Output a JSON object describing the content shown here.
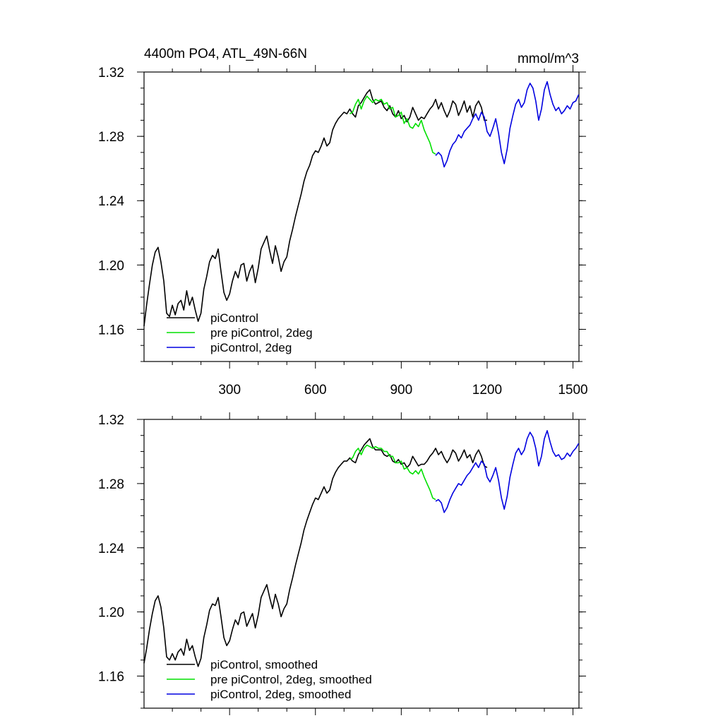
{
  "chart_data": [
    {
      "type": "line",
      "title": "4400m PO4, ATL_49N-66N",
      "units_label": "mmol/m^3",
      "x_tick_labels": [
        "300",
        "600",
        "900",
        "1200",
        "1500"
      ],
      "y_tick_labels": [
        "1.32",
        "1.28",
        "1.24",
        "1.20",
        "1.16"
      ],
      "xlim": [
        1,
        1521
      ],
      "ylim": [
        1.14,
        1.32
      ],
      "series": [
        {
          "name": "piControl",
          "color": "#000000",
          "x": [
            1,
            10,
            20,
            30,
            40,
            50,
            60,
            70,
            80,
            90,
            100,
            110,
            120,
            130,
            140,
            150,
            160,
            170,
            180,
            190,
            200,
            210,
            220,
            230,
            240,
            250,
            260,
            270,
            280,
            290,
            300,
            310,
            320,
            330,
            340,
            350,
            360,
            370,
            380,
            390,
            400,
            410,
            420,
            430,
            440,
            450,
            460,
            470,
            480,
            490,
            500,
            510,
            520,
            530,
            540,
            550,
            560,
            570,
            580,
            590,
            600,
            610,
            620,
            630,
            640,
            650,
            660,
            670,
            680,
            690,
            700,
            710,
            720,
            730,
            740,
            750,
            760,
            770,
            780,
            790,
            800,
            810,
            820,
            830,
            840,
            850,
            860,
            870,
            880,
            890,
            900,
            910,
            920,
            930,
            940,
            950,
            960,
            970,
            980,
            990,
            1000,
            1010,
            1020,
            1030,
            1040,
            1050,
            1060,
            1070,
            1080,
            1090,
            1100,
            1110,
            1120,
            1130,
            1140,
            1150,
            1160,
            1170,
            1180,
            1190,
            1200
          ],
          "y": [
            1.162,
            1.175,
            1.188,
            1.2,
            1.208,
            1.211,
            1.202,
            1.19,
            1.17,
            1.168,
            1.175,
            1.169,
            1.176,
            1.178,
            1.172,
            1.184,
            1.175,
            1.18,
            1.172,
            1.165,
            1.17,
            1.185,
            1.193,
            1.202,
            1.206,
            1.204,
            1.21,
            1.196,
            1.183,
            1.178,
            1.182,
            1.19,
            1.196,
            1.192,
            1.2,
            1.201,
            1.19,
            1.196,
            1.2,
            1.189,
            1.198,
            1.21,
            1.214,
            1.218,
            1.209,
            1.201,
            1.212,
            1.205,
            1.196,
            1.202,
            1.205,
            1.215,
            1.222,
            1.23,
            1.237,
            1.244,
            1.252,
            1.258,
            1.262,
            1.268,
            1.271,
            1.27,
            1.274,
            1.279,
            1.274,
            1.276,
            1.284,
            1.288,
            1.291,
            1.293,
            1.295,
            1.294,
            1.297,
            1.294,
            1.292,
            1.299,
            1.301,
            1.304,
            1.307,
            1.309,
            1.303,
            1.3,
            1.301,
            1.302,
            1.298,
            1.296,
            1.299,
            1.294,
            1.292,
            1.296,
            1.291,
            1.293,
            1.289,
            1.292,
            1.298,
            1.294,
            1.29,
            1.292,
            1.291,
            1.294,
            1.297,
            1.299,
            1.303,
            1.297,
            1.301,
            1.296,
            1.292,
            1.296,
            1.302,
            1.3,
            1.293,
            1.297,
            1.302,
            1.295,
            1.299,
            1.292,
            1.299,
            1.302,
            1.298,
            1.29,
            1.29
          ]
        },
        {
          "name": "pre piControl, 2deg",
          "color": "#00e000",
          "x": [
            720,
            730,
            740,
            750,
            760,
            770,
            780,
            790,
            800,
            810,
            820,
            830,
            840,
            850,
            860,
            870,
            880,
            890,
            900,
            910,
            920,
            930,
            940,
            950,
            960,
            970,
            980,
            990,
            1000,
            1010,
            1020
          ],
          "y": [
            1.294,
            1.295,
            1.3,
            1.303,
            1.297,
            1.302,
            1.305,
            1.303,
            1.301,
            1.303,
            1.302,
            1.303,
            1.3,
            1.301,
            1.297,
            1.298,
            1.292,
            1.293,
            1.295,
            1.288,
            1.291,
            1.286,
            1.285,
            1.288,
            1.286,
            1.29,
            1.284,
            1.28,
            1.276,
            1.27,
            1.269
          ]
        },
        {
          "name": "piControl, 2deg",
          "color": "#0000e0",
          "x": [
            1020,
            1030,
            1040,
            1050,
            1060,
            1070,
            1080,
            1090,
            1100,
            1110,
            1120,
            1130,
            1140,
            1150,
            1160,
            1170,
            1180,
            1190,
            1200,
            1210,
            1220,
            1230,
            1240,
            1250,
            1260,
            1270,
            1280,
            1290,
            1300,
            1310,
            1320,
            1330,
            1340,
            1350,
            1360,
            1370,
            1380,
            1390,
            1400,
            1410,
            1420,
            1430,
            1440,
            1450,
            1460,
            1470,
            1480,
            1490,
            1500,
            1510,
            1520
          ],
          "y": [
            1.268,
            1.27,
            1.268,
            1.261,
            1.265,
            1.271,
            1.275,
            1.277,
            1.281,
            1.279,
            1.283,
            1.285,
            1.287,
            1.291,
            1.294,
            1.29,
            1.295,
            1.292,
            1.283,
            1.28,
            1.285,
            1.291,
            1.282,
            1.27,
            1.263,
            1.272,
            1.285,
            1.293,
            1.3,
            1.303,
            1.298,
            1.301,
            1.309,
            1.313,
            1.31,
            1.302,
            1.29,
            1.297,
            1.309,
            1.314,
            1.306,
            1.3,
            1.296,
            1.298,
            1.294,
            1.296,
            1.299,
            1.297,
            1.301,
            1.302,
            1.306
          ]
        }
      ]
    },
    {
      "type": "line",
      "title": "",
      "x_tick_labels": [],
      "y_tick_labels": [
        "1.32",
        "1.28",
        "1.24",
        "1.20",
        "1.16"
      ],
      "xlim": [
        1,
        1521
      ],
      "ylim": [
        1.14,
        1.32
      ],
      "series": [
        {
          "name": "piControl, smoothed",
          "color": "#000000",
          "x": [
            1,
            10,
            20,
            30,
            40,
            50,
            60,
            70,
            80,
            90,
            100,
            110,
            120,
            130,
            140,
            150,
            160,
            170,
            180,
            190,
            200,
            210,
            220,
            230,
            240,
            250,
            260,
            270,
            280,
            290,
            300,
            310,
            320,
            330,
            340,
            350,
            360,
            370,
            380,
            390,
            400,
            410,
            420,
            430,
            440,
            450,
            460,
            470,
            480,
            490,
            500,
            510,
            520,
            530,
            540,
            550,
            560,
            570,
            580,
            590,
            600,
            610,
            620,
            630,
            640,
            650,
            660,
            670,
            680,
            690,
            700,
            710,
            720,
            730,
            740,
            750,
            760,
            770,
            780,
            790,
            800,
            810,
            820,
            830,
            840,
            850,
            860,
            870,
            880,
            890,
            900,
            910,
            920,
            930,
            940,
            950,
            960,
            970,
            980,
            990,
            1000,
            1010,
            1020,
            1030,
            1040,
            1050,
            1060,
            1070,
            1080,
            1090,
            1100,
            1110,
            1120,
            1130,
            1140,
            1150,
            1160,
            1170,
            1180,
            1190,
            1200
          ],
          "y": [
            1.168,
            1.177,
            1.189,
            1.199,
            1.207,
            1.21,
            1.203,
            1.19,
            1.172,
            1.17,
            1.174,
            1.17,
            1.175,
            1.177,
            1.173,
            1.183,
            1.176,
            1.179,
            1.172,
            1.166,
            1.171,
            1.184,
            1.192,
            1.201,
            1.205,
            1.204,
            1.209,
            1.197,
            1.184,
            1.179,
            1.182,
            1.189,
            1.195,
            1.192,
            1.199,
            1.2,
            1.191,
            1.195,
            1.199,
            1.19,
            1.198,
            1.209,
            1.213,
            1.217,
            1.209,
            1.202,
            1.211,
            1.205,
            1.197,
            1.202,
            1.205,
            1.214,
            1.221,
            1.229,
            1.236,
            1.243,
            1.251,
            1.257,
            1.262,
            1.267,
            1.271,
            1.27,
            1.274,
            1.278,
            1.274,
            1.276,
            1.283,
            1.287,
            1.29,
            1.292,
            1.294,
            1.294,
            1.296,
            1.294,
            1.293,
            1.298,
            1.301,
            1.304,
            1.306,
            1.308,
            1.303,
            1.301,
            1.301,
            1.301,
            1.298,
            1.297,
            1.298,
            1.294,
            1.293,
            1.295,
            1.292,
            1.293,
            1.29,
            1.292,
            1.297,
            1.294,
            1.291,
            1.292,
            1.292,
            1.294,
            1.297,
            1.299,
            1.302,
            1.298,
            1.3,
            1.296,
            1.293,
            1.296,
            1.301,
            1.299,
            1.294,
            1.297,
            1.301,
            1.296,
            1.298,
            1.293,
            1.298,
            1.301,
            1.297,
            1.291,
            1.29
          ]
        },
        {
          "name": "pre piControl, 2deg, smoothed",
          "color": "#00e000",
          "x": [
            720,
            730,
            740,
            750,
            760,
            770,
            780,
            790,
            800,
            810,
            820,
            830,
            840,
            850,
            860,
            870,
            880,
            890,
            900,
            910,
            920,
            930,
            940,
            950,
            960,
            970,
            980,
            990,
            1000,
            1010,
            1020
          ],
          "y": [
            1.295,
            1.296,
            1.3,
            1.302,
            1.298,
            1.302,
            1.304,
            1.303,
            1.302,
            1.303,
            1.302,
            1.302,
            1.3,
            1.3,
            1.297,
            1.297,
            1.293,
            1.293,
            1.294,
            1.289,
            1.29,
            1.287,
            1.286,
            1.288,
            1.286,
            1.289,
            1.284,
            1.28,
            1.276,
            1.271,
            1.27
          ]
        },
        {
          "name": "piControl, 2deg, smoothed",
          "color": "#0000e0",
          "x": [
            1020,
            1030,
            1040,
            1050,
            1060,
            1070,
            1080,
            1090,
            1100,
            1110,
            1120,
            1130,
            1140,
            1150,
            1160,
            1170,
            1180,
            1190,
            1200,
            1210,
            1220,
            1230,
            1240,
            1250,
            1260,
            1270,
            1280,
            1290,
            1300,
            1310,
            1320,
            1330,
            1340,
            1350,
            1360,
            1370,
            1380,
            1390,
            1400,
            1410,
            1420,
            1430,
            1440,
            1450,
            1460,
            1470,
            1480,
            1490,
            1500,
            1510,
            1520
          ],
          "y": [
            1.269,
            1.27,
            1.268,
            1.262,
            1.265,
            1.27,
            1.274,
            1.277,
            1.28,
            1.279,
            1.282,
            1.285,
            1.287,
            1.29,
            1.293,
            1.29,
            1.294,
            1.292,
            1.284,
            1.281,
            1.285,
            1.29,
            1.282,
            1.271,
            1.264,
            1.272,
            1.284,
            1.292,
            1.299,
            1.302,
            1.298,
            1.301,
            1.308,
            1.312,
            1.309,
            1.302,
            1.291,
            1.297,
            1.308,
            1.313,
            1.306,
            1.3,
            1.297,
            1.298,
            1.295,
            1.296,
            1.299,
            1.297,
            1.3,
            1.302,
            1.305
          ]
        }
      ]
    }
  ]
}
